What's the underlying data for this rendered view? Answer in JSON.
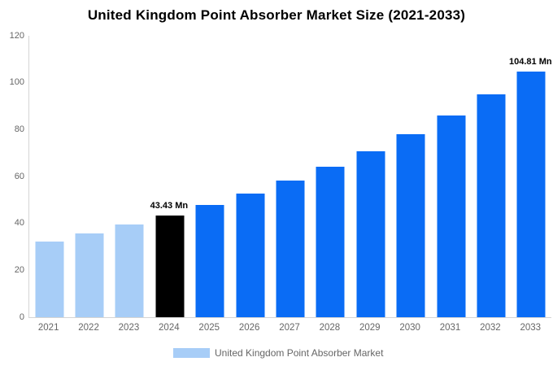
{
  "title": "United Kingdom Point Absorber Market Size (2021-2033)",
  "legend": {
    "label": "United Kingdom Point Absorber Market",
    "swatch_color": "#a7cdf7"
  },
  "colors": {
    "historical_bar": "#a7cdf7",
    "base_year_bar": "#000000",
    "forecast_bar": "#0a6cf5",
    "axis_line": "#d4d4d4",
    "tick_text": "#666666",
    "annotation_text": "#000000"
  },
  "chart_data": {
    "type": "bar",
    "title": "United Kingdom Point Absorber Market Size (2021-2033)",
    "xlabel": "",
    "ylabel": "",
    "categories": [
      "2021",
      "2022",
      "2023",
      "2024",
      "2025",
      "2026",
      "2027",
      "2028",
      "2029",
      "2030",
      "2031",
      "2032",
      "2033"
    ],
    "values": [
      32.38,
      35.71,
      39.38,
      43.43,
      47.89,
      52.82,
      58.25,
      64.24,
      70.84,
      78.13,
      86.16,
      95.02,
      104.81
    ],
    "bar_colors": [
      "#a7cdf7",
      "#a7cdf7",
      "#a7cdf7",
      "#000000",
      "#0a6cf5",
      "#0a6cf5",
      "#0a6cf5",
      "#0a6cf5",
      "#0a6cf5",
      "#0a6cf5",
      "#0a6cf5",
      "#0a6cf5",
      "#0a6cf5"
    ],
    "annotations": [
      {
        "category": "2024",
        "text": "43.43 Mn"
      },
      {
        "category": "2033",
        "text": "104.81 Mn"
      }
    ],
    "yticks": [
      0,
      20,
      40,
      60,
      80,
      100,
      120
    ],
    "ylim": [
      0,
      120
    ],
    "grid": false,
    "legend_position": "bottom"
  }
}
